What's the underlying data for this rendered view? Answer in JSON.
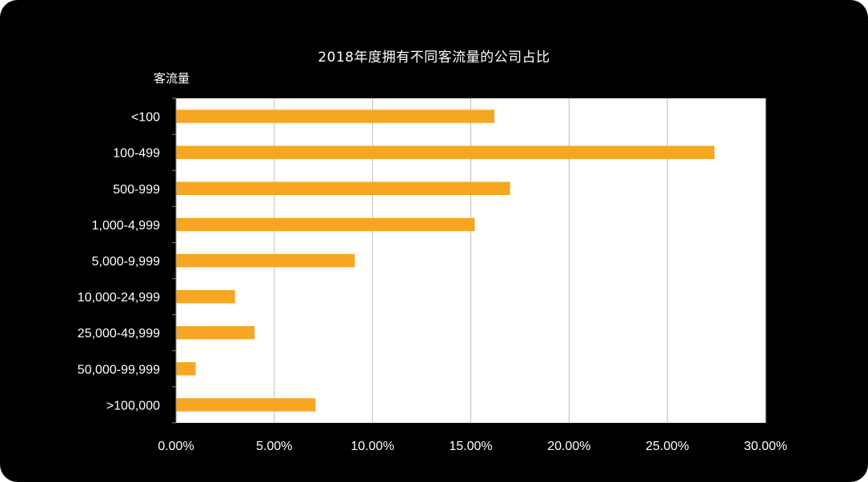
{
  "chart_data": {
    "type": "bar",
    "orientation": "horizontal",
    "title": "2018年度拥有不同客流量的公司占比",
    "ylabel": "客流量",
    "xlabel": "",
    "categories": [
      "<100",
      "100-499",
      "500-999",
      "1,000-4,999",
      "5,000-9,999",
      "10,000-24,999",
      "25,000-49,999",
      "50,000-99,999",
      ">100,000"
    ],
    "values": [
      16.2,
      27.4,
      17.0,
      15.2,
      9.1,
      3.0,
      4.0,
      1.0,
      7.1
    ],
    "unit": "%",
    "xlim": [
      0,
      30
    ],
    "x_ticks": [
      "0.00%",
      "5.00%",
      "10.00%",
      "15.00%",
      "20.00%",
      "25.00%",
      "30.00%"
    ],
    "grid": "vertical",
    "legend": "none",
    "bar_color": "#F5A623",
    "plot_background": "#FFFFFF",
    "figure_background": "#000000"
  }
}
